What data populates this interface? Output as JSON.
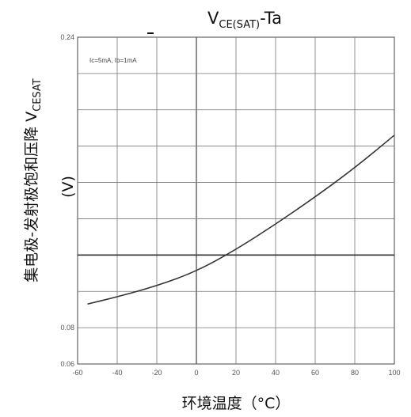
{
  "chart_data": {
    "type": "line",
    "title": {
      "main": "V",
      "sub": "CE(SAT)",
      "rest": "-Ta"
    },
    "xlabel": "环境温度（°C）",
    "ylabel": {
      "main": "集电极-发射极饱和压降 V",
      "sub": "CESAT",
      "unit": "(V)"
    },
    "annotation": "Ic=5mA, Ib=1mA",
    "xlim": [
      -60,
      100
    ],
    "ylim": [
      0.06,
      0.24
    ],
    "x_ticks": [
      -60,
      -40,
      -20,
      0,
      20,
      40,
      60,
      80,
      100
    ],
    "x_tick_labels": [
      "-60",
      "-40",
      "-20",
      "0",
      "20",
      "40",
      "60",
      "80",
      "100"
    ],
    "y_tick_labels": [
      {
        "value": 0.24,
        "label": "0.24"
      },
      {
        "value": 0.08,
        "label": "0.08"
      },
      {
        "value": 0.06,
        "label": "0.06"
      }
    ],
    "grid": true,
    "horizontal_reference": 0.12,
    "series": [
      {
        "x": [
          -55,
          -40,
          -20,
          0,
          20,
          40,
          60,
          80,
          100
        ],
        "y": [
          0.093,
          0.097,
          0.103,
          0.111,
          0.123,
          0.137,
          0.152,
          0.168,
          0.186
        ]
      }
    ]
  }
}
